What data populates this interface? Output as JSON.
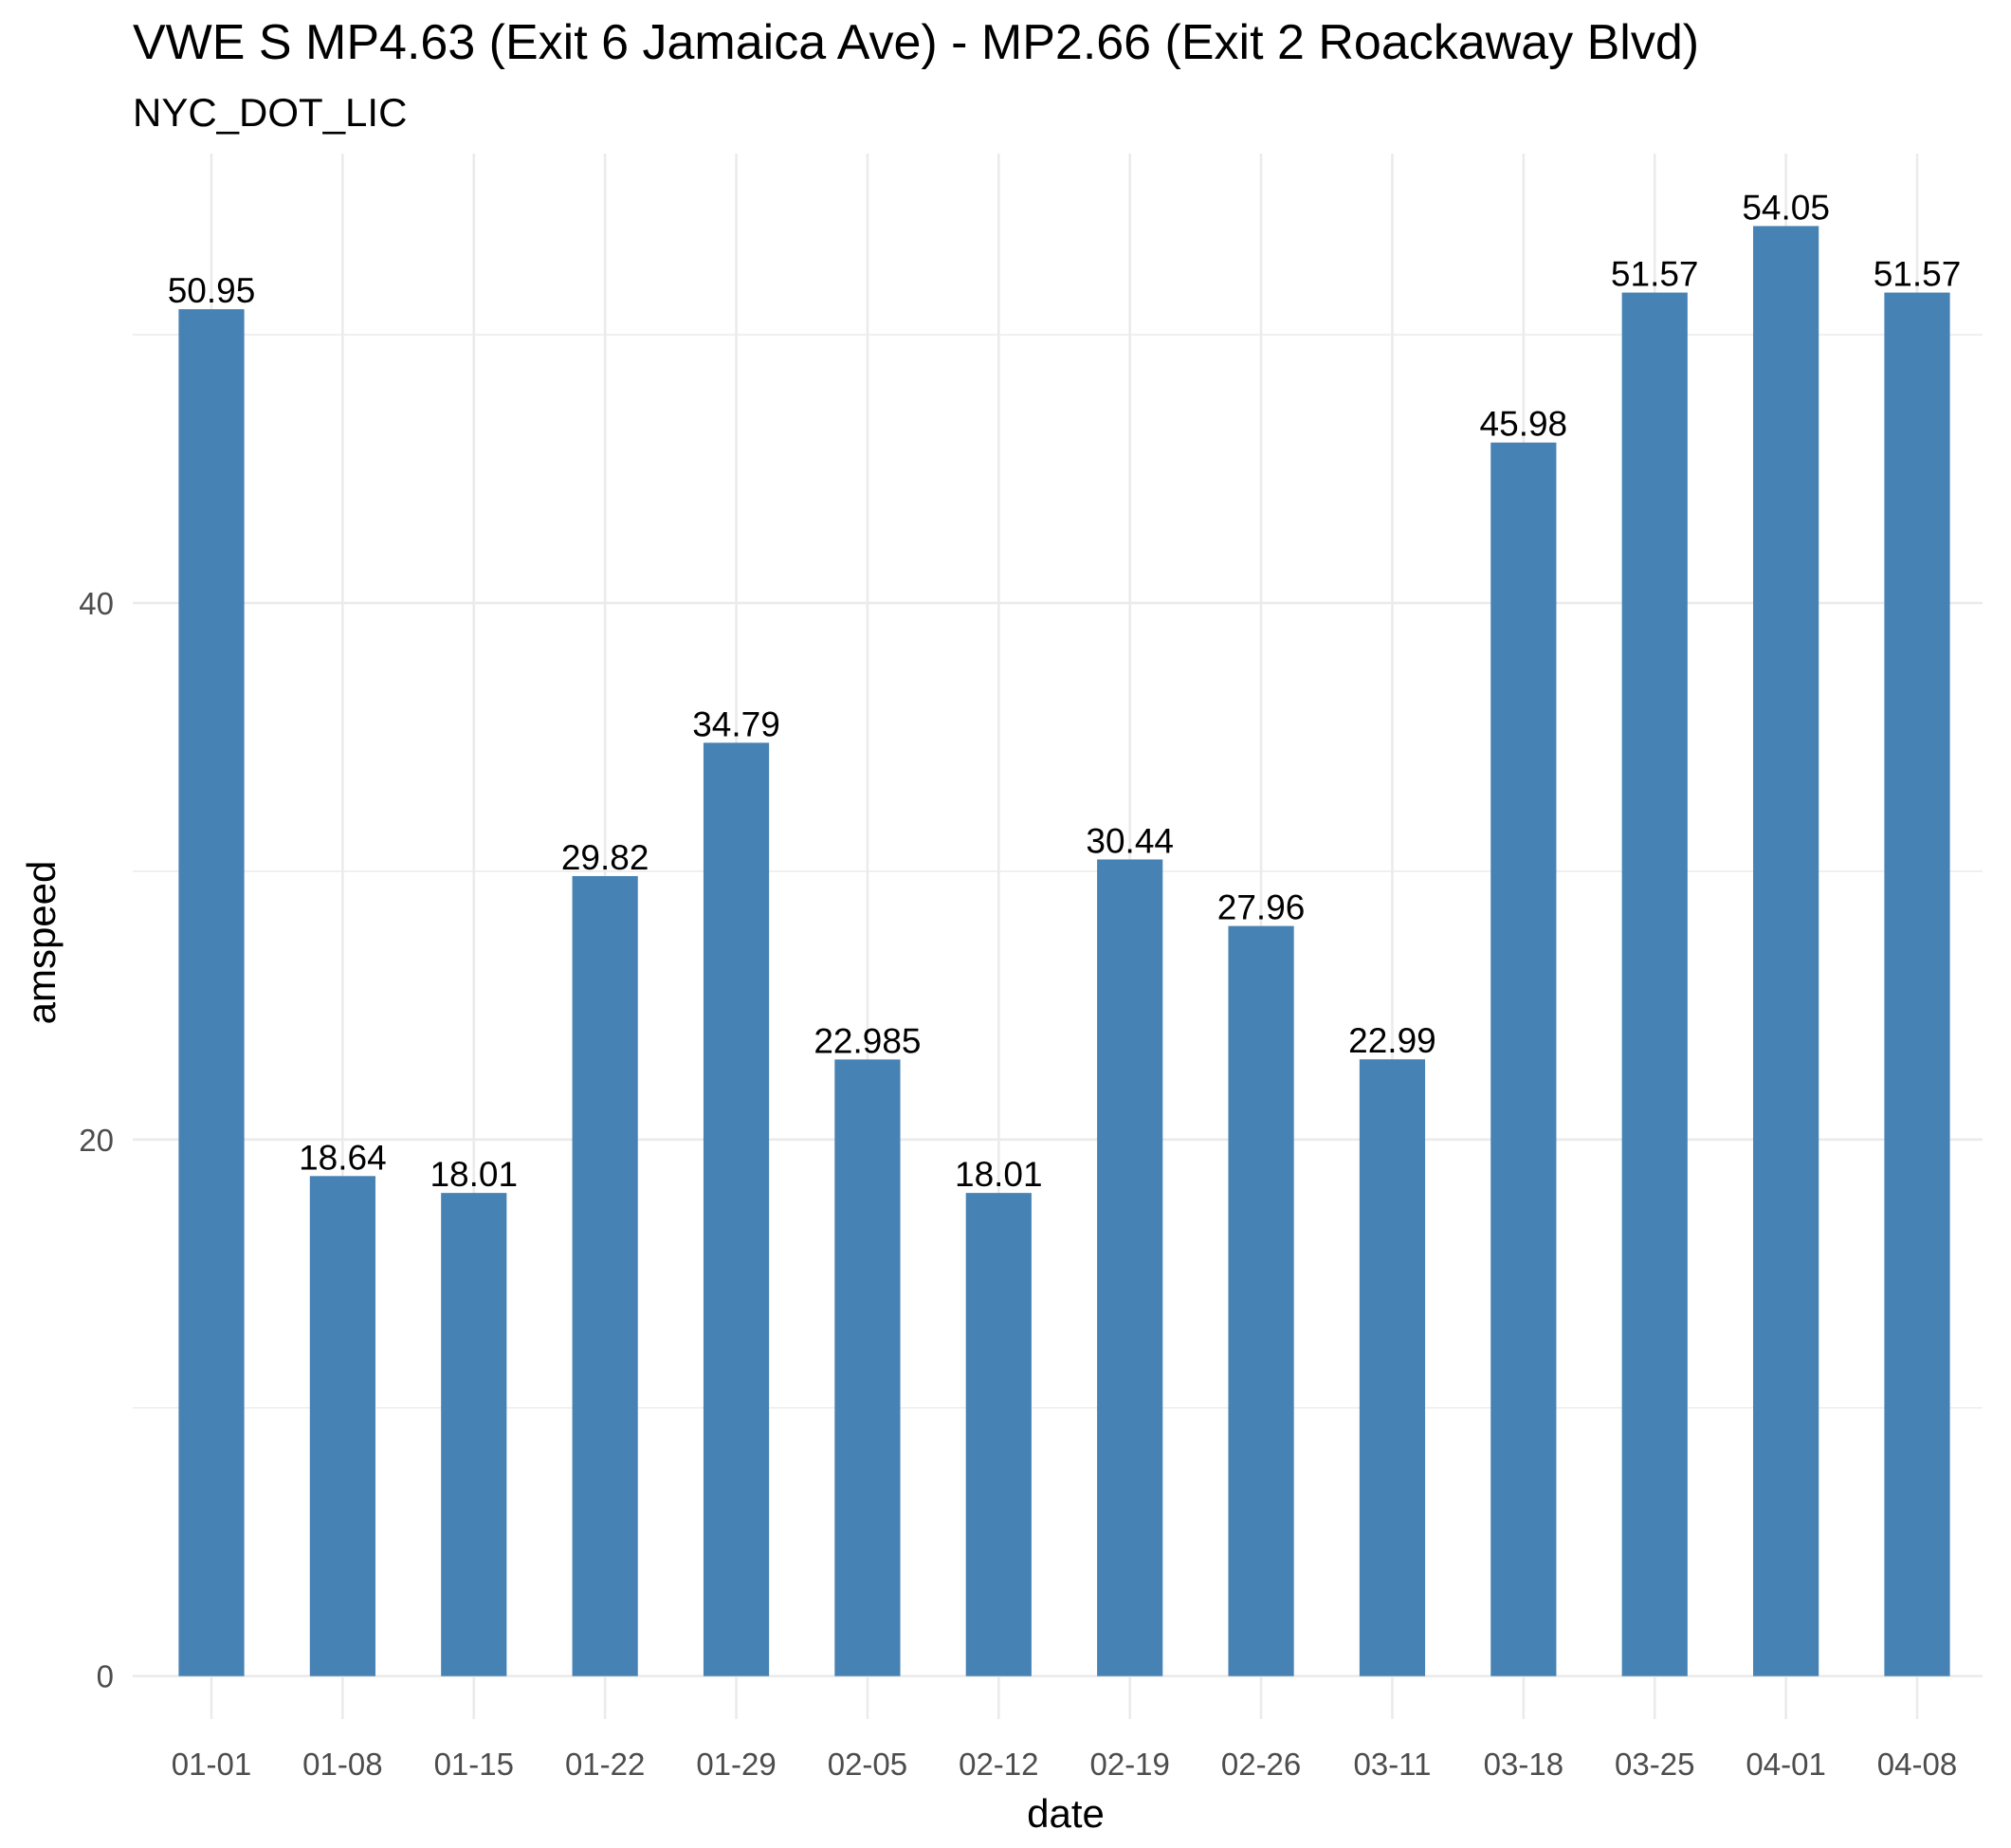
{
  "chart_data": {
    "type": "bar",
    "title": "VWE S MP4.63 (Exit 6 Jamaica Ave) - MP2.66 (Exit 2 Roackaway Blvd)",
    "subtitle": "NYC_DOT_LIC",
    "xlabel": "date",
    "ylabel": "amspeed",
    "categories": [
      "01-01",
      "01-08",
      "01-15",
      "01-22",
      "01-29",
      "02-05",
      "02-12",
      "02-19",
      "02-26",
      "03-11",
      "03-18",
      "03-25",
      "04-01",
      "04-08"
    ],
    "values": [
      50.95,
      18.64,
      18.01,
      29.82,
      34.79,
      22.985,
      18.01,
      30.44,
      27.96,
      22.99,
      45.98,
      51.57,
      54.05,
      51.57
    ],
    "value_labels": [
      "50.95",
      "18.64",
      "18.01",
      "29.82",
      "34.79",
      "22.985",
      "18.01",
      "30.44",
      "27.96",
      "22.99",
      "45.98",
      "51.57",
      "54.05",
      "51.57"
    ],
    "y_ticks": [
      0,
      20,
      40
    ],
    "y_tick_labels": [
      "0",
      "20",
      "40"
    ],
    "ylim": [
      -1.6,
      56.75
    ],
    "grid": true,
    "legend": "none",
    "colors": {
      "bar": "#4682B4",
      "grid": "#EBEBEB",
      "background": "#FFFFFF"
    }
  }
}
